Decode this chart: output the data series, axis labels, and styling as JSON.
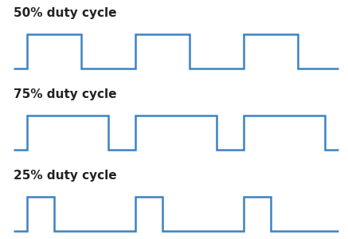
{
  "background_color": "#ffffff",
  "line_color": "#3a82c4",
  "line_width": 1.8,
  "labels": [
    "50% duty cycle",
    "75% duty cycle",
    "25% duty cycle"
  ],
  "label_fontsize": 11,
  "label_fontweight": "bold",
  "label_color": "#222222",
  "duty_cycles": [
    0.5,
    0.75,
    0.25
  ],
  "waveforms": [
    [
      0.0,
      0.0,
      0.5,
      0.0,
      0.5,
      1.0,
      2.5,
      1.0,
      2.5,
      0.0,
      4.5,
      0.0,
      4.5,
      1.0,
      6.5,
      1.0,
      6.5,
      0.0,
      8.5,
      0.0,
      8.5,
      1.0,
      10.5,
      1.0,
      10.5,
      0.0,
      12.0,
      0.0
    ],
    [
      0.0,
      0.0,
      0.5,
      0.0,
      0.5,
      1.0,
      3.5,
      1.0,
      3.5,
      0.0,
      4.5,
      0.0,
      4.5,
      1.0,
      7.5,
      1.0,
      7.5,
      0.0,
      8.5,
      0.0,
      8.5,
      1.0,
      11.5,
      1.0,
      11.5,
      0.0,
      12.0,
      0.0
    ],
    [
      0.0,
      0.0,
      0.5,
      0.0,
      0.5,
      1.0,
      1.5,
      1.0,
      1.5,
      0.0,
      4.5,
      0.0,
      4.5,
      1.0,
      5.5,
      1.0,
      5.5,
      0.0,
      8.5,
      0.0,
      8.5,
      1.0,
      9.5,
      1.0,
      9.5,
      0.0,
      12.0,
      0.0
    ]
  ],
  "xlim": [
    -0.1,
    12.1
  ],
  "ylim": [
    -0.3,
    1.8
  ]
}
